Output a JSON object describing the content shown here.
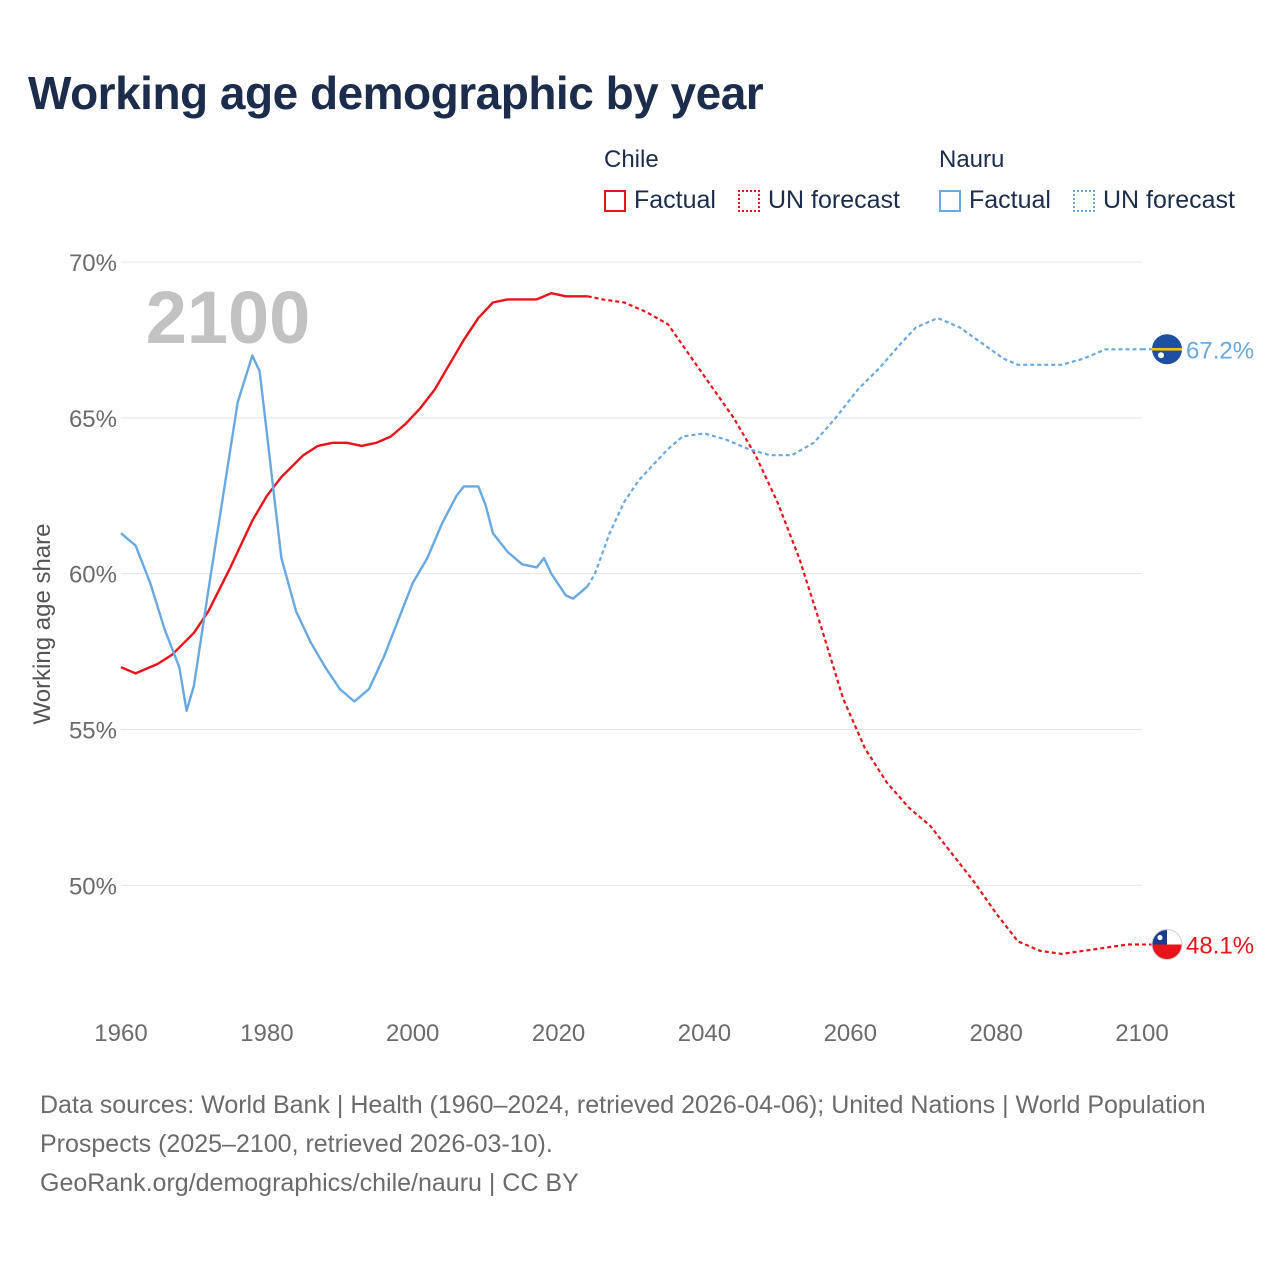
{
  "title": "Working age demographic by year",
  "legend": {
    "groups": [
      {
        "country": "Chile",
        "factual_label": "Factual",
        "forecast_label": "UN forecast",
        "color": "#e8141c"
      },
      {
        "country": "Nauru",
        "factual_label": "Factual",
        "forecast_label": "UN forecast",
        "color": "#67a9e0"
      }
    ]
  },
  "year_watermark": "2100",
  "footer": {
    "sources": "Data sources: World Bank | Health (1960–2024, retrieved 2026-04-06); United Nations | World Population Prospects (2025–2100, retrieved 2026-03-10).",
    "credit": "GeoRank.org/demographics/chile/nauru | CC BY"
  },
  "chart_data": {
    "type": "line",
    "title": "Working age demographic by year",
    "xlabel": "",
    "ylabel": "Working age share",
    "xlim": [
      1960,
      2100
    ],
    "ylim": [
      46,
      70
    ],
    "x_ticks": [
      1960,
      1980,
      2000,
      2020,
      2040,
      2060,
      2080,
      2100
    ],
    "x_tick_labels": [
      "1960",
      "1980",
      "2000",
      "2020",
      "2040",
      "2060",
      "2080",
      "2100"
    ],
    "y_ticks": [
      50,
      55,
      60,
      65,
      70
    ],
    "y_tick_labels": [
      "50%",
      "55%",
      "60%",
      "65%",
      "70%"
    ],
    "grid": true,
    "factual_end_year": 2024,
    "series": [
      {
        "name": "Chile",
        "color": "#e8141c",
        "end_label": "48.1%",
        "points": [
          [
            1960,
            57.0
          ],
          [
            1962,
            56.8
          ],
          [
            1965,
            57.1
          ],
          [
            1967,
            57.4
          ],
          [
            1970,
            58.1
          ],
          [
            1972,
            58.8
          ],
          [
            1975,
            60.2
          ],
          [
            1978,
            61.7
          ],
          [
            1980,
            62.5
          ],
          [
            1982,
            63.1
          ],
          [
            1985,
            63.8
          ],
          [
            1987,
            64.1
          ],
          [
            1989,
            64.2
          ],
          [
            1991,
            64.2
          ],
          [
            1993,
            64.1
          ],
          [
            1995,
            64.2
          ],
          [
            1997,
            64.4
          ],
          [
            1999,
            64.8
          ],
          [
            2001,
            65.3
          ],
          [
            2003,
            65.9
          ],
          [
            2005,
            66.7
          ],
          [
            2007,
            67.5
          ],
          [
            2009,
            68.2
          ],
          [
            2011,
            68.7
          ],
          [
            2013,
            68.8
          ],
          [
            2015,
            68.8
          ],
          [
            2017,
            68.8
          ],
          [
            2019,
            69.0
          ],
          [
            2021,
            68.9
          ],
          [
            2024,
            68.9
          ],
          [
            2026,
            68.8
          ],
          [
            2029,
            68.7
          ],
          [
            2032,
            68.4
          ],
          [
            2035,
            68.0
          ],
          [
            2038,
            67.0
          ],
          [
            2041,
            66.0
          ],
          [
            2044,
            65.0
          ],
          [
            2047,
            63.8
          ],
          [
            2050,
            62.3
          ],
          [
            2053,
            60.5
          ],
          [
            2056,
            58.3
          ],
          [
            2059,
            56.0
          ],
          [
            2062,
            54.4
          ],
          [
            2065,
            53.3
          ],
          [
            2068,
            52.5
          ],
          [
            2071,
            51.9
          ],
          [
            2074,
            51.0
          ],
          [
            2077,
            50.1
          ],
          [
            2080,
            49.1
          ],
          [
            2083,
            48.2
          ],
          [
            2086,
            47.9
          ],
          [
            2089,
            47.8
          ],
          [
            2092,
            47.9
          ],
          [
            2095,
            48.0
          ],
          [
            2098,
            48.1
          ],
          [
            2100,
            48.1
          ]
        ]
      },
      {
        "name": "Nauru",
        "color": "#67a9e0",
        "end_label": "67.2%",
        "points": [
          [
            1960,
            61.3
          ],
          [
            1962,
            60.9
          ],
          [
            1964,
            59.7
          ],
          [
            1966,
            58.2
          ],
          [
            1968,
            57.0
          ],
          [
            1969,
            55.6
          ],
          [
            1970,
            56.4
          ],
          [
            1972,
            59.5
          ],
          [
            1974,
            62.5
          ],
          [
            1976,
            65.5
          ],
          [
            1978,
            67.0
          ],
          [
            1979,
            66.5
          ],
          [
            1980,
            64.5
          ],
          [
            1981,
            62.5
          ],
          [
            1982,
            60.5
          ],
          [
            1984,
            58.8
          ],
          [
            1986,
            57.8
          ],
          [
            1988,
            57.0
          ],
          [
            1990,
            56.3
          ],
          [
            1992,
            55.9
          ],
          [
            1994,
            56.3
          ],
          [
            1996,
            57.3
          ],
          [
            1998,
            58.5
          ],
          [
            2000,
            59.7
          ],
          [
            2002,
            60.5
          ],
          [
            2004,
            61.6
          ],
          [
            2006,
            62.5
          ],
          [
            2007,
            62.8
          ],
          [
            2009,
            62.8
          ],
          [
            2010,
            62.2
          ],
          [
            2011,
            61.3
          ],
          [
            2013,
            60.7
          ],
          [
            2015,
            60.3
          ],
          [
            2017,
            60.2
          ],
          [
            2018,
            60.5
          ],
          [
            2019,
            60.0
          ],
          [
            2021,
            59.3
          ],
          [
            2022,
            59.2
          ],
          [
            2024,
            59.6
          ],
          [
            2025,
            60.0
          ],
          [
            2027,
            61.3
          ],
          [
            2029,
            62.3
          ],
          [
            2031,
            63.0
          ],
          [
            2033,
            63.5
          ],
          [
            2035,
            64.0
          ],
          [
            2037,
            64.4
          ],
          [
            2040,
            64.5
          ],
          [
            2043,
            64.3
          ],
          [
            2046,
            64.0
          ],
          [
            2049,
            63.8
          ],
          [
            2052,
            63.8
          ],
          [
            2055,
            64.2
          ],
          [
            2058,
            65.0
          ],
          [
            2061,
            65.9
          ],
          [
            2064,
            66.6
          ],
          [
            2067,
            67.4
          ],
          [
            2069,
            67.9
          ],
          [
            2072,
            68.2
          ],
          [
            2075,
            67.9
          ],
          [
            2078,
            67.4
          ],
          [
            2081,
            66.9
          ],
          [
            2083,
            66.7
          ],
          [
            2086,
            66.7
          ],
          [
            2089,
            66.7
          ],
          [
            2092,
            66.9
          ],
          [
            2095,
            67.2
          ],
          [
            2100,
            67.2
          ]
        ]
      }
    ]
  }
}
